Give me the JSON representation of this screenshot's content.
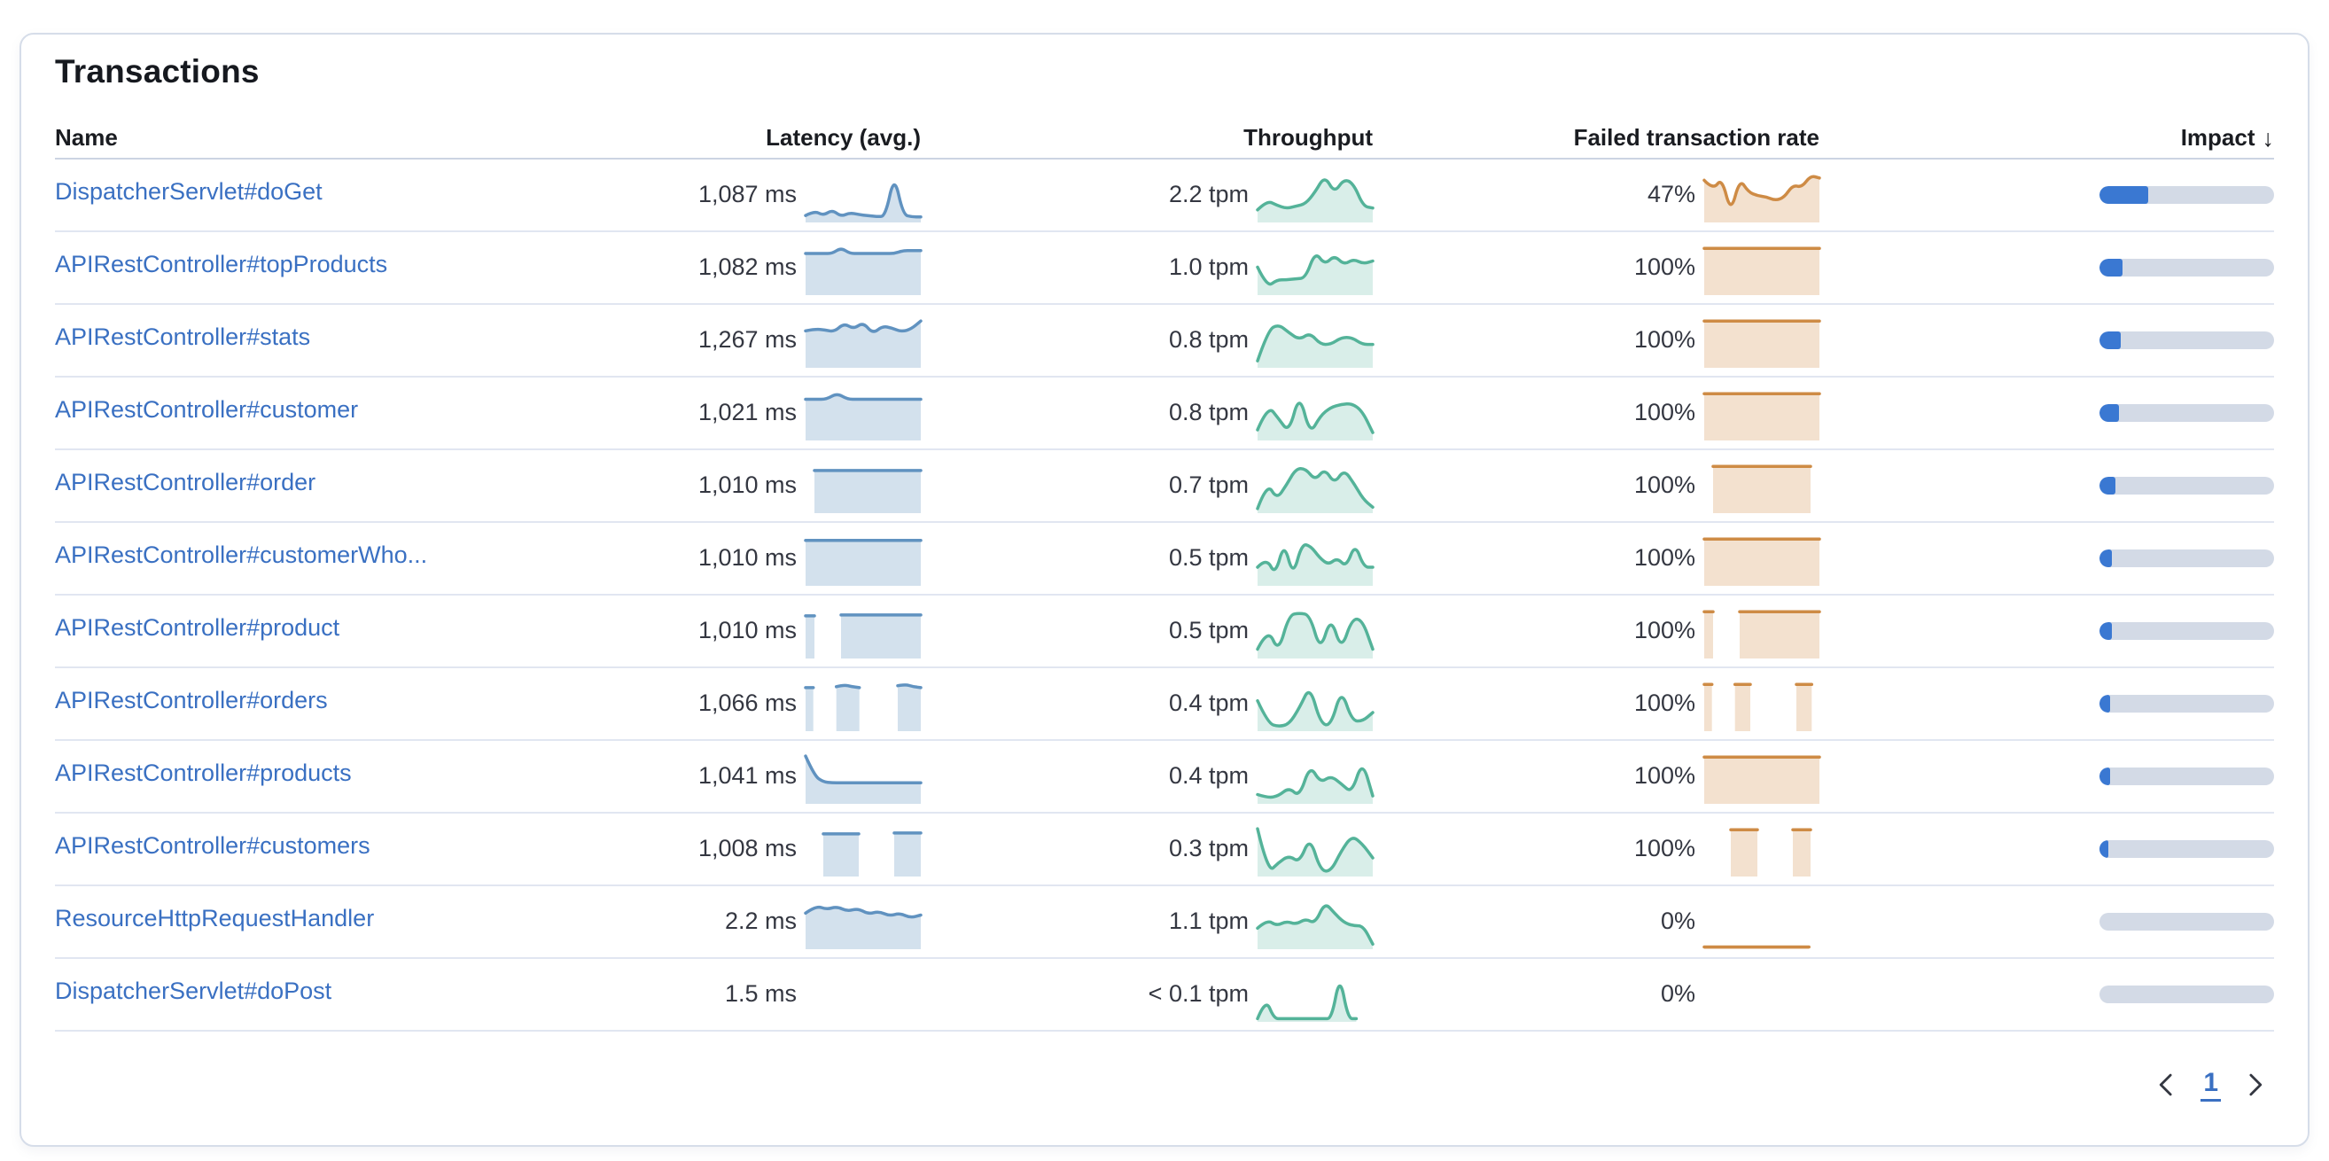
{
  "card": {
    "title": "Transactions"
  },
  "table": {
    "columns": {
      "name": "Name",
      "latency": "Latency (avg.)",
      "throughput": "Throughput",
      "failed_rate": "Failed transaction rate",
      "impact": "Impact"
    },
    "sort": {
      "column": "impact",
      "direction": "desc"
    },
    "sort_arrow": "↓"
  },
  "colors": {
    "link_blue": "#3a70c2",
    "latency_line": "#6092c0",
    "latency_fill": "rgba(96,146,192,0.28)",
    "throughput_line": "#54b399",
    "throughput_fill": "rgba(84,179,153,0.22)",
    "failed_line": "#ce8b45",
    "failed_fill": "rgba(209,139,71,0.26)",
    "impact_fill": "#3a78d2",
    "impact_track": "#d3dae6"
  },
  "rows": [
    {
      "name": "DispatcherServlet#doGet",
      "latency": "1,087 ms",
      "latency_spark": [
        10,
        20,
        10,
        22,
        8,
        16,
        12,
        10,
        8,
        8,
        97,
        12,
        7,
        7
      ],
      "throughput": "2.2 tpm",
      "throughput_spark": [
        22,
        42,
        32,
        25,
        30,
        35,
        60,
        95,
        58,
        88,
        78,
        30,
        26
      ],
      "failed_rate": "47%",
      "failed_spark": [
        85,
        65,
        90,
        15,
        88,
        60,
        52,
        50,
        42,
        48,
        75,
        70,
        95,
        90
      ],
      "impact_pct": 28
    },
    {
      "name": "APIRestController#topProducts",
      "latency": "1,082 ms",
      "latency_spark": [
        84,
        84,
        84,
        84,
        96,
        84,
        84,
        84,
        84,
        84,
        84,
        90,
        90,
        90
      ],
      "throughput": "1.0 tpm",
      "throughput_spark": [
        55,
        12,
        28,
        28,
        30,
        32,
        88,
        60,
        80,
        60,
        72,
        62,
        68
      ],
      "failed_rate": "100%",
      "failed_spark": [
        95,
        95,
        95,
        95,
        95,
        95,
        95,
        95,
        95,
        95,
        95,
        95
      ],
      "impact_pct": 13
    },
    {
      "name": "APIRestController#stats",
      "latency": "1,267 ms",
      "latency_spark": [
        74,
        78,
        76,
        72,
        90,
        78,
        92,
        68,
        84,
        80,
        72,
        78,
        95
      ],
      "throughput": "0.8 tpm",
      "throughput_spark": [
        10,
        75,
        88,
        70,
        55,
        70,
        45,
        45,
        60,
        60,
        45,
        45
      ],
      "failed_rate": "100%",
      "failed_spark": [
        95,
        95,
        95,
        95,
        95,
        95,
        95,
        95,
        95,
        95,
        95,
        95
      ],
      "impact_pct": 12
    },
    {
      "name": "APIRestController#customer",
      "latency": "1,021 ms",
      "latency_spark": [
        83,
        83,
        83,
        96,
        83,
        83,
        83,
        83,
        83,
        83,
        83,
        83
      ],
      "throughput": "0.8 tpm",
      "throughput_spark": [
        18,
        70,
        42,
        12,
        96,
        8,
        48,
        66,
        72,
        74,
        58,
        12
      ],
      "failed_rate": "100%",
      "failed_spark": [
        95,
        95,
        95,
        95,
        95,
        95,
        95,
        95,
        95,
        95,
        95,
        95
      ],
      "impact_pct": 11
    },
    {
      "name": "APIRestController#order",
      "latency": "1,010 ms",
      "latency_spark": [
        null,
        86,
        86,
        86,
        86,
        86,
        86,
        86,
        86,
        86,
        86,
        86,
        86,
        86
      ],
      "throughput": "0.7 tpm",
      "throughput_spark": [
        5,
        60,
        25,
        55,
        90,
        90,
        65,
        90,
        58,
        88,
        60,
        25,
        8
      ],
      "failed_rate": "100%",
      "failed_spark": [
        null,
        95,
        95,
        95,
        95,
        95,
        95,
        95,
        95,
        95,
        95,
        95,
        95,
        null
      ],
      "impact_pct": 9
    },
    {
      "name": "APIRestController#customerWho...",
      "latency": "1,010 ms",
      "latency_spark": [
        92,
        92,
        92,
        92,
        92,
        92,
        92,
        92,
        92,
        92,
        92,
        92
      ],
      "throughput": "0.5 tpm",
      "throughput_spark": [
        35,
        55,
        18,
        88,
        15,
        85,
        80,
        55,
        40,
        55,
        35,
        85,
        35,
        35
      ],
      "failed_rate": "100%",
      "failed_spark": [
        95,
        95,
        95,
        95,
        95,
        95,
        95,
        95,
        95,
        95,
        95,
        95
      ],
      "impact_pct": 7
    },
    {
      "name": "APIRestController#product",
      "latency": "1,010 ms",
      "latency_spark": [
        86,
        86,
        null,
        null,
        88,
        88,
        88,
        88,
        88,
        88,
        88,
        88,
        88,
        88
      ],
      "throughput": "0.5 tpm",
      "throughput_spark": [
        15,
        60,
        8,
        88,
        92,
        88,
        10,
        85,
        12,
        80,
        78,
        15
      ],
      "failed_rate": "100%",
      "failed_spark": [
        95,
        95,
        null,
        null,
        95,
        95,
        95,
        95,
        95,
        95,
        95,
        95,
        95,
        95
      ],
      "impact_pct": 7
    },
    {
      "name": "APIRestController#orders",
      "latency": "1,066 ms",
      "latency_spark": [
        88,
        88,
        null,
        null,
        90,
        94,
        90,
        88,
        null,
        null,
        null,
        null,
        92,
        95,
        90,
        88
      ],
      "throughput": "0.4 tpm",
      "throughput_spark": [
        60,
        12,
        5,
        10,
        45,
        92,
        12,
        6,
        85,
        18,
        16,
        35
      ],
      "failed_rate": "100%",
      "failed_spark": [
        95,
        95,
        null,
        null,
        95,
        95,
        95,
        null,
        null,
        null,
        null,
        null,
        95,
        95,
        95,
        null
      ],
      "impact_pct": 6
    },
    {
      "name": "APIRestController#products",
      "latency": "1,041 ms",
      "latency_spark": [
        97,
        55,
        42,
        40,
        40,
        40,
        40,
        40,
        40,
        40,
        40,
        40,
        40,
        40
      ],
      "throughput": "0.4 tpm",
      "throughput_spark": [
        15,
        8,
        12,
        30,
        10,
        78,
        40,
        55,
        38,
        18,
        88,
        12
      ],
      "failed_rate": "100%",
      "failed_spark": [
        95,
        95,
        95,
        95,
        95,
        95,
        95,
        95,
        95,
        95,
        95,
        95
      ],
      "impact_pct": 6
    },
    {
      "name": "APIRestController#customers",
      "latency": "1,008 ms",
      "latency_spark": [
        null,
        null,
        86,
        86,
        86,
        86,
        86,
        null,
        null,
        null,
        88,
        88,
        88,
        88
      ],
      "throughput": "0.3 tpm",
      "throughput_spark": [
        97,
        3,
        25,
        40,
        25,
        80,
        8,
        6,
        50,
        82,
        65,
        35
      ],
      "failed_rate": "100%",
      "failed_spark": [
        null,
        null,
        null,
        95,
        95,
        95,
        95,
        null,
        null,
        null,
        95,
        95,
        95,
        null
      ],
      "impact_pct": 5
    },
    {
      "name": "ResourceHttpRequestHandler",
      "latency": "2.2 ms",
      "latency_spark": [
        72,
        88,
        80,
        86,
        76,
        82,
        70,
        76,
        66,
        72,
        62,
        68
      ],
      "throughput": "1.1 tpm",
      "throughput_spark": [
        40,
        58,
        45,
        55,
        48,
        60,
        50,
        95,
        72,
        52,
        45,
        45,
        6
      ],
      "failed_rate": "0%",
      "failed_spark": [
        0,
        0,
        0,
        0,
        0,
        0,
        0,
        0,
        0,
        0,
        0,
        null
      ],
      "impact_pct": 0
    },
    {
      "name": "DispatcherServlet#doPost",
      "latency": "1.5 ms",
      "latency_spark": null,
      "throughput": "< 0.1 tpm",
      "throughput_spark": [
        2,
        45,
        2,
        2,
        2,
        2,
        2,
        2,
        2,
        2,
        95,
        2,
        2,
        null,
        null
      ],
      "failed_rate": "0%",
      "failed_spark": null,
      "impact_pct": 0
    }
  ],
  "pagination": {
    "prev_icon": "chevron-left",
    "page": "1",
    "next_icon": "chevron-right"
  }
}
